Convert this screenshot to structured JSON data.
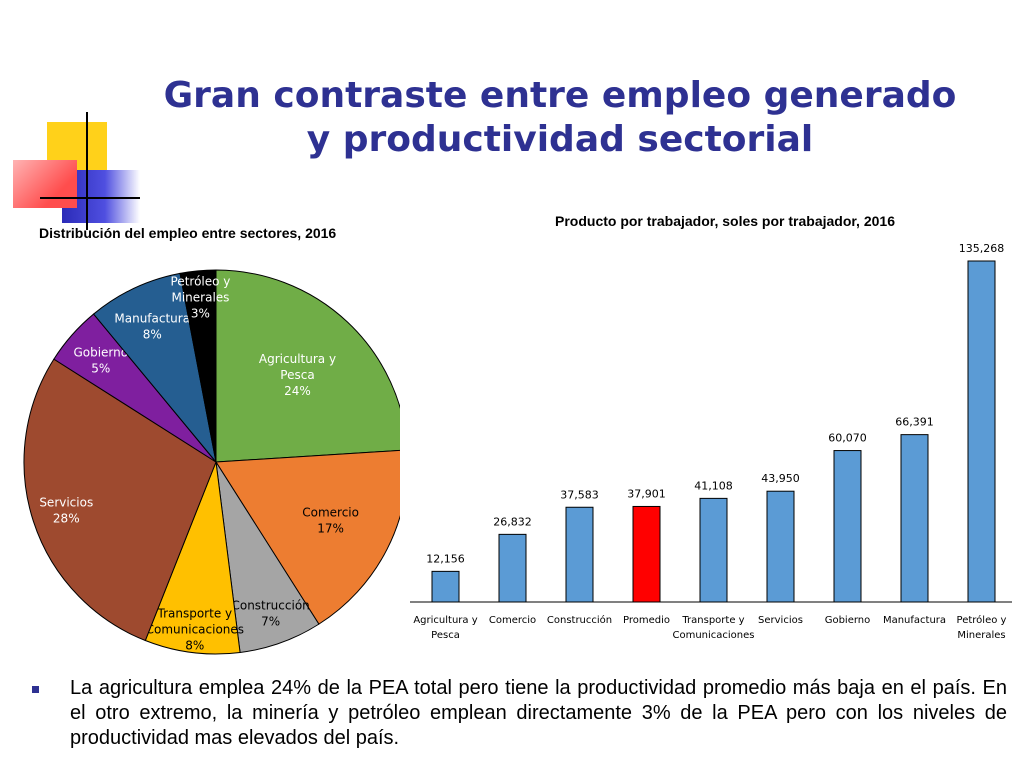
{
  "slide": {
    "title": "Gran contraste entre empleo generado y productividad sectorial",
    "bullet": "La agricultura emplea 24% de la PEA total pero tiene la productividad promedio más baja en el país. En el otro extremo, la minería y petróleo emplean directamente 3% de la PEA pero con los niveles de productividad mas elevados del país."
  },
  "colors": {
    "title": "#2e3192",
    "deco_yellow": "#ffd11a",
    "deco_blue": "#3333cc",
    "deco_red": "#ff4d4d"
  },
  "chart_data": [
    {
      "type": "pie",
      "title": "Distribución del empleo entre sectores, 2016",
      "slices": [
        {
          "label": "Agricultura y Pesca",
          "value": 24,
          "display": "24%",
          "color": "#70ad47"
        },
        {
          "label": "Comercio",
          "value": 17,
          "display": "17%",
          "color": "#ed7d31"
        },
        {
          "label": "Construcción",
          "value": 7,
          "display": "7%",
          "color": "#a5a5a5"
        },
        {
          "label": "Transporte y Comunicaciones",
          "value": 8,
          "display": "8%",
          "color": "#ffc000"
        },
        {
          "label": "Servicios",
          "value": 28,
          "display": "28%",
          "color": "#9e4a2f"
        },
        {
          "label": "Gobierno",
          "value": 5,
          "display": "5%",
          "color": "#7f1f9f"
        },
        {
          "label": "Manufactura",
          "value": 8,
          "display": "8%",
          "color": "#255e91"
        },
        {
          "label": "Petróleo y Minerales",
          "value": 3,
          "display": "3%",
          "color": "#000000"
        }
      ]
    },
    {
      "type": "bar",
      "title": "Producto por trabajador, soles por trabajador, 2016",
      "categories": [
        "Agricultura y Pesca",
        "Comercio",
        "Construcción",
        "Promedio",
        "Transporte y Comunicaciones",
        "Servicios",
        "Gobierno",
        "Manufactura",
        "Petróleo y Minerales"
      ],
      "values": [
        12156,
        26832,
        37583,
        37901,
        41108,
        43950,
        60070,
        66391,
        135268
      ],
      "value_labels": [
        "12,156",
        "26,832",
        "37,583",
        "37,901",
        "41,108",
        "43,950",
        "60,070",
        "66,391",
        "135,268"
      ],
      "bar_color": "#5b9bd5",
      "highlight": {
        "category": "Promedio",
        "color": "#ff0000"
      },
      "ylim": [
        0,
        140000
      ],
      "grid": false
    }
  ]
}
